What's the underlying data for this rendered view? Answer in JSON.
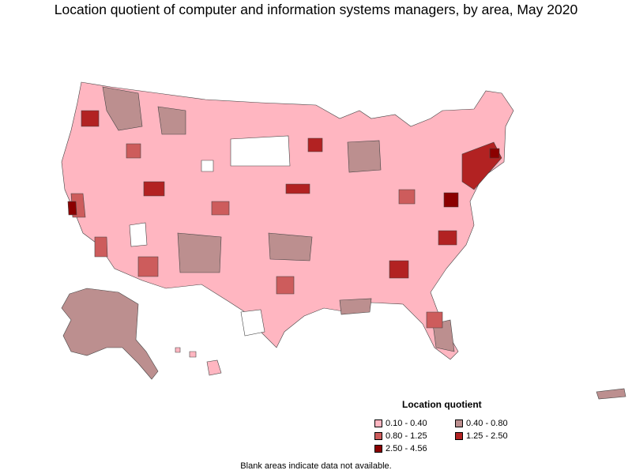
{
  "title": "Location quotient of computer and information systems managers, by area, May 2020",
  "legend": {
    "title": "Location quotient",
    "items": [
      {
        "label": "0.10 - 0.40",
        "color": "#ffb6c1"
      },
      {
        "label": "0.40 - 0.80",
        "color": "#bc8f8f"
      },
      {
        "label": "0.80 - 1.25",
        "color": "#cd5c5c"
      },
      {
        "label": "1.25 - 2.50",
        "color": "#b22222"
      },
      {
        "label": "2.50 - 4.56",
        "color": "#8b0000"
      }
    ]
  },
  "footnote": "Blank areas indicate data not available.",
  "regions": [
    {
      "name": "Alaska",
      "class": "0.40 - 0.80",
      "color": "#bc8f8f"
    },
    {
      "name": "Hawaii",
      "class": "0.10 - 0.40",
      "color": "#ffb6c1"
    },
    {
      "name": "Puerto Rico",
      "class": "0.40 - 0.80",
      "color": "#bc8f8f"
    },
    {
      "name": "Contiguous US (most areas)",
      "class": "0.10 - 0.40",
      "color": "#ffb6c1"
    },
    {
      "name": "Washington DC area",
      "class": "2.50 - 4.56",
      "color": "#8b0000"
    },
    {
      "name": "San Jose area",
      "class": "2.50 - 4.56",
      "color": "#8b0000"
    },
    {
      "name": "Atlanta area",
      "class": "1.25 - 2.50",
      "color": "#b22222"
    },
    {
      "name": "Denver area",
      "class": "1.25 - 2.50",
      "color": "#b22222"
    },
    {
      "name": "Boston area",
      "class": "1.25 - 2.50",
      "color": "#b22222"
    },
    {
      "name": "Seattle area",
      "class": "1.25 - 2.50",
      "color": "#b22222"
    },
    {
      "name": "Minneapolis area",
      "class": "1.25 - 2.50",
      "color": "#b22222"
    }
  ]
}
